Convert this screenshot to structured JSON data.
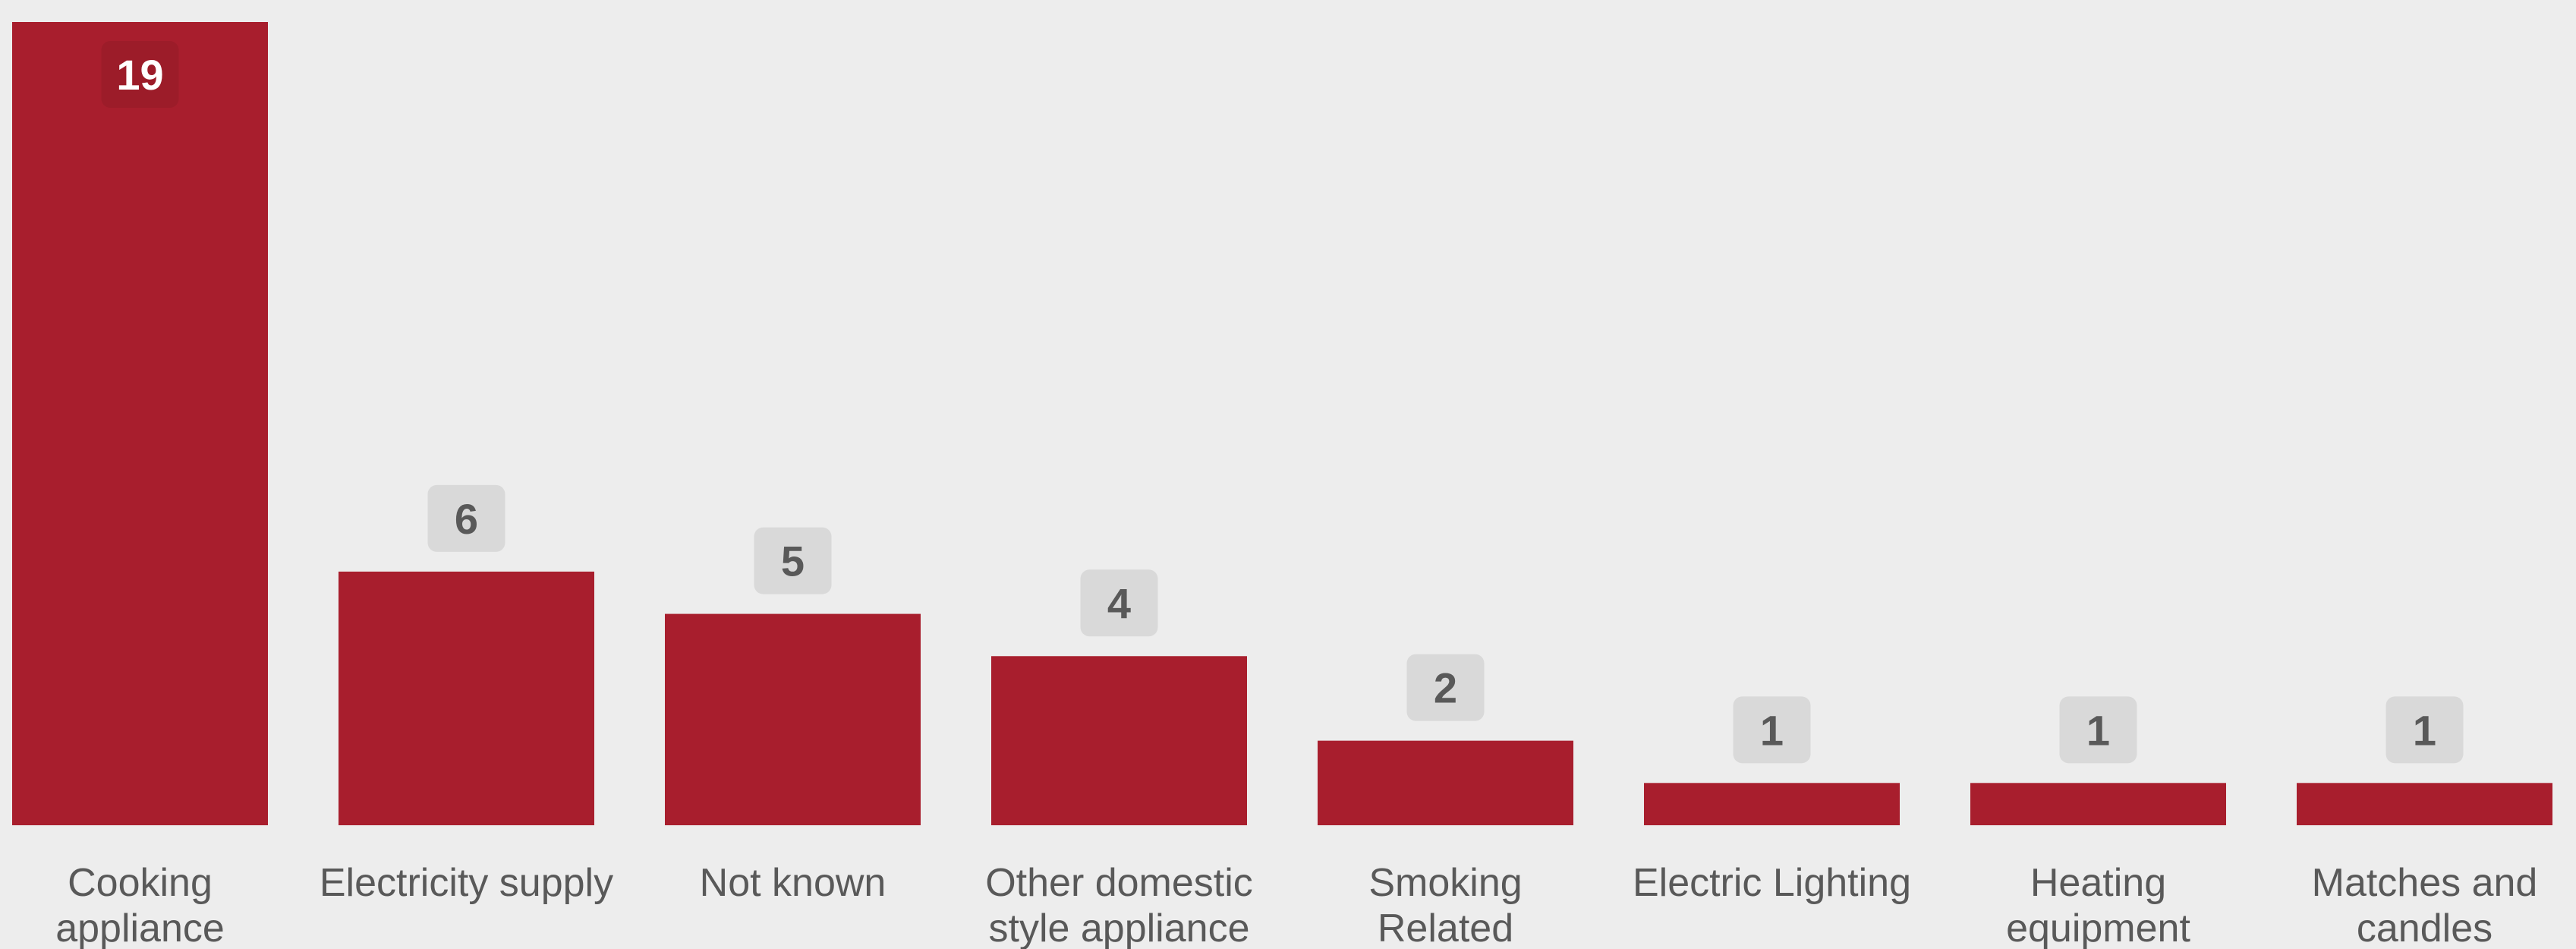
{
  "colors": {
    "background": "#ededed",
    "bar": "#a81e2d",
    "label_box": "#d9d9d9",
    "label_box_inside": "#9c1c29",
    "label_text": "#595959",
    "label_text_inside": "#ffffff",
    "category_text": "#595959"
  },
  "chart_data": {
    "type": "bar",
    "categories": [
      [
        "Cooking",
        "appliance"
      ],
      [
        "Electricity supply"
      ],
      [
        "Not known"
      ],
      [
        "Other domestic",
        "style appliance"
      ],
      [
        "Smoking",
        "Related"
      ],
      [
        "Electric Lighting"
      ],
      [
        "Heating",
        "equipment"
      ],
      [
        "Matches and",
        "candles"
      ]
    ],
    "values": [
      19,
      6,
      5,
      4,
      2,
      1,
      1,
      1
    ],
    "ylim": [
      0,
      19
    ],
    "grid": false,
    "legend": "none"
  }
}
